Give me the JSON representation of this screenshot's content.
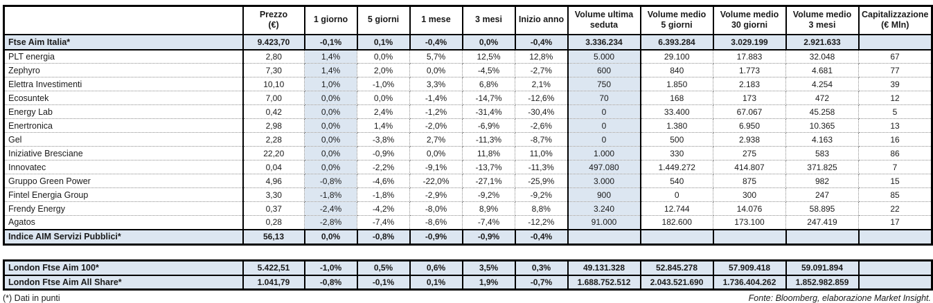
{
  "colors": {
    "shade": "#dce6f1",
    "grid": "#000000",
    "dotted": "#8a8a8a"
  },
  "table": {
    "col_headers": [
      {
        "line1": "",
        "line2": ""
      },
      {
        "line1": "Prezzo",
        "line2": "(€)"
      },
      {
        "line1": "1 giorno",
        "line2": ""
      },
      {
        "line1": "5 giorni",
        "line2": ""
      },
      {
        "line1": "1 mese",
        "line2": ""
      },
      {
        "line1": "3 mesi",
        "line2": ""
      },
      {
        "line1": "Inizio anno",
        "line2": ""
      },
      {
        "line1": "Volume ultima",
        "line2": "seduta"
      },
      {
        "line1": "Volume medio",
        "line2": "5 giorni"
      },
      {
        "line1": "Volume medio",
        "line2": "30 giorni"
      },
      {
        "line1": "Volume medio",
        "line2": "3 mesi"
      },
      {
        "line1": "Capitalizzazione",
        "line2": "(€ Mln)"
      }
    ],
    "index_top": {
      "name": "Ftse Aim Italia*",
      "cells": [
        "9.423,70",
        "-0,1%",
        "0,1%",
        "-0,4%",
        "0,0%",
        "-0,4%",
        "3.336.234",
        "6.393.284",
        "3.029.199",
        "2.921.633",
        ""
      ]
    },
    "rows": [
      {
        "name": "PLT energia",
        "cells": [
          "2,80",
          "1,4%",
          "0,0%",
          "5,7%",
          "12,5%",
          "12,8%",
          "5.000",
          "29.100",
          "17.883",
          "32.048",
          "67"
        ]
      },
      {
        "name": "Zephyro",
        "cells": [
          "7,30",
          "1,4%",
          "2,0%",
          "0,0%",
          "-4,5%",
          "-2,7%",
          "600",
          "840",
          "1.773",
          "4.681",
          "77"
        ]
      },
      {
        "name": "Elettra Investimenti",
        "cells": [
          "10,10",
          "1,0%",
          "-1,0%",
          "3,3%",
          "6,8%",
          "2,1%",
          "750",
          "1.850",
          "2.183",
          "4.254",
          "39"
        ]
      },
      {
        "name": "Ecosuntek",
        "cells": [
          "7,00",
          "0,0%",
          "0,0%",
          "-1,4%",
          "-14,7%",
          "-12,6%",
          "70",
          "168",
          "173",
          "472",
          "12"
        ]
      },
      {
        "name": "Energy Lab",
        "cells": [
          "0,42",
          "0,0%",
          "2,4%",
          "-1,2%",
          "-31,4%",
          "-30,4%",
          "0",
          "33.400",
          "67.067",
          "45.258",
          "5"
        ]
      },
      {
        "name": "Enertronica",
        "cells": [
          "2,98",
          "0,0%",
          "1,4%",
          "-2,0%",
          "-6,9%",
          "-2,6%",
          "0",
          "1.380",
          "6.950",
          "10.365",
          "13"
        ]
      },
      {
        "name": "Gel",
        "cells": [
          "2,28",
          "0,0%",
          "-3,8%",
          "2,7%",
          "-11,3%",
          "-8,7%",
          "0",
          "500",
          "2.938",
          "4.163",
          "16"
        ]
      },
      {
        "name": "Iniziative Bresciane",
        "cells": [
          "22,20",
          "0,0%",
          "-0,9%",
          "0,0%",
          "11,8%",
          "11,0%",
          "1.000",
          "330",
          "275",
          "583",
          "86"
        ]
      },
      {
        "name": "Innovatec",
        "cells": [
          "0,04",
          "0,0%",
          "-2,2%",
          "-9,1%",
          "-13,7%",
          "-11,3%",
          "497.080",
          "1.449.272",
          "414.807",
          "371.825",
          "7"
        ]
      },
      {
        "name": "Gruppo Green Power",
        "cells": [
          "4,96",
          "-0,8%",
          "-4,6%",
          "-22,0%",
          "-27,1%",
          "-25,9%",
          "3.000",
          "540",
          "875",
          "982",
          "15"
        ]
      },
      {
        "name": "Fintel Energia Group",
        "cells": [
          "3,30",
          "-1,8%",
          "-1,8%",
          "-2,9%",
          "-9,2%",
          "-9,2%",
          "900",
          "0",
          "300",
          "247",
          "85"
        ]
      },
      {
        "name": "Frendy Energy",
        "cells": [
          "0,37",
          "-2,4%",
          "-4,2%",
          "-8,0%",
          "8,9%",
          "8,8%",
          "3.240",
          "12.744",
          "14.076",
          "58.895",
          "22"
        ]
      },
      {
        "name": "Agatos",
        "cells": [
          "0,28",
          "-2,8%",
          "-7,4%",
          "-8,6%",
          "-7,4%",
          "-12,2%",
          "91.000",
          "182.600",
          "173.100",
          "247.419",
          "17"
        ]
      }
    ],
    "index_bottom": {
      "name": "Indice AIM Servizi Pubblici*",
      "cells": [
        "56,13",
        "0,0%",
        "-0,8%",
        "-0,9%",
        "-0,9%",
        "-0,4%",
        "",
        "",
        "",
        "",
        ""
      ]
    }
  },
  "london": {
    "rows": [
      {
        "name": "London Ftse Aim 100*",
        "cells": [
          "5.422,51",
          "-1,0%",
          "0,5%",
          "0,6%",
          "3,5%",
          "0,3%",
          "49.131.328",
          "52.845.278",
          "57.909.418",
          "59.091.894",
          ""
        ]
      },
      {
        "name": "London Ftse Aim All Share*",
        "cells": [
          "1.041,79",
          "-0,8%",
          "-0,1%",
          "0,1%",
          "1,9%",
          "-0,7%",
          "1.688.752.512",
          "2.043.521.690",
          "1.736.404.262",
          "1.852.982.859",
          ""
        ]
      }
    ]
  },
  "footer": {
    "note": "(*) Dati in punti",
    "source": "Fonte: Bloomberg, elaborazione Market Insight."
  }
}
